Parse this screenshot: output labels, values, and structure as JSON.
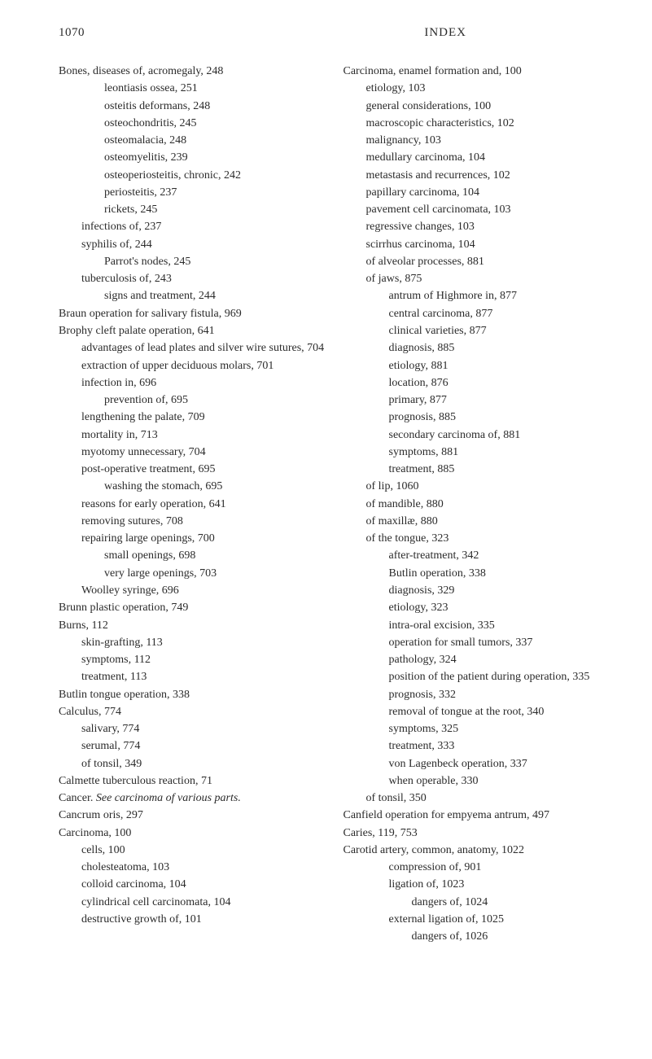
{
  "header": {
    "page_number": "1070",
    "title": "INDEX"
  },
  "left_column": [
    {
      "indent": 0,
      "text": "Bones, diseases of, acromegaly, 248"
    },
    {
      "indent": 2,
      "text": "leontiasis ossea, 251"
    },
    {
      "indent": 2,
      "text": "osteitis deformans, 248"
    },
    {
      "indent": 2,
      "text": "osteochondritis, 245"
    },
    {
      "indent": 2,
      "text": "osteomalacia, 248"
    },
    {
      "indent": 2,
      "text": "osteomyelitis, 239"
    },
    {
      "indent": 2,
      "text": "osteoperiosteitis, chronic, 242"
    },
    {
      "indent": 2,
      "text": "periosteitis, 237"
    },
    {
      "indent": 2,
      "text": "rickets, 245"
    },
    {
      "indent": 1,
      "text": "infections of, 237"
    },
    {
      "indent": 1,
      "text": "syphilis of, 244"
    },
    {
      "indent": 2,
      "text": "Parrot's nodes, 245"
    },
    {
      "indent": 1,
      "text": "tuberculosis of, 243"
    },
    {
      "indent": 2,
      "text": "signs and treatment, 244"
    },
    {
      "indent": 0,
      "text": "Braun operation for salivary fistula, 969"
    },
    {
      "indent": 0,
      "text": "Brophy cleft palate operation, 641"
    },
    {
      "indent": 1,
      "text": "advantages of lead plates and silver wire sutures, 704"
    },
    {
      "indent": 1,
      "text": "extraction of upper deciduous molars, 701"
    },
    {
      "indent": 1,
      "text": "infection in, 696"
    },
    {
      "indent": 2,
      "text": "prevention of, 695"
    },
    {
      "indent": 1,
      "text": "lengthening the palate, 709"
    },
    {
      "indent": 1,
      "text": "mortality in, 713"
    },
    {
      "indent": 1,
      "text": "myotomy unnecessary, 704"
    },
    {
      "indent": 1,
      "text": "post-operative treatment, 695"
    },
    {
      "indent": 2,
      "text": "washing the stomach, 695"
    },
    {
      "indent": 1,
      "text": "reasons for early operation, 641"
    },
    {
      "indent": 1,
      "text": "removing sutures, 708"
    },
    {
      "indent": 1,
      "text": "repairing large openings, 700"
    },
    {
      "indent": 2,
      "text": "small openings, 698"
    },
    {
      "indent": 2,
      "text": "very large openings, 703"
    },
    {
      "indent": 1,
      "text": "Woolley syringe, 696"
    },
    {
      "indent": 0,
      "text": "Brunn plastic operation, 749"
    },
    {
      "indent": 0,
      "text": "Burns, 112"
    },
    {
      "indent": 1,
      "text": "skin-grafting, 113"
    },
    {
      "indent": 1,
      "text": "symptoms, 112"
    },
    {
      "indent": 1,
      "text": "treatment, 113"
    },
    {
      "indent": 0,
      "text": "Butlin tongue operation, 338"
    },
    {
      "indent": 0,
      "text": " "
    },
    {
      "indent": 0,
      "text": "Calculus, 774"
    },
    {
      "indent": 1,
      "text": "salivary, 774"
    },
    {
      "indent": 1,
      "text": "serumal, 774"
    },
    {
      "indent": 1,
      "text": "of tonsil, 349"
    },
    {
      "indent": 0,
      "text": "Calmette tuberculous reaction, 71"
    },
    {
      "indent": 0,
      "prefix": "Cancer.   ",
      "italic_text": "See carcinoma of various parts."
    },
    {
      "indent": 0,
      "text": "Cancrum oris, 297"
    },
    {
      "indent": 0,
      "text": "Carcinoma, 100"
    },
    {
      "indent": 1,
      "text": "cells, 100"
    },
    {
      "indent": 1,
      "text": "cholesteatoma, 103"
    },
    {
      "indent": 1,
      "text": "colloid carcinoma, 104"
    },
    {
      "indent": 1,
      "text": "cylindrical cell carcinomata, 104"
    },
    {
      "indent": 1,
      "text": "destructive growth of, 101"
    }
  ],
  "right_column": [
    {
      "indent": 0,
      "text": "Carcinoma, enamel formation and, 100"
    },
    {
      "indent": 1,
      "text": "etiology, 103"
    },
    {
      "indent": 1,
      "text": "general considerations, 100"
    },
    {
      "indent": 1,
      "text": "macroscopic characteristics, 102"
    },
    {
      "indent": 1,
      "text": "malignancy, 103"
    },
    {
      "indent": 1,
      "text": "medullary carcinoma, 104"
    },
    {
      "indent": 1,
      "text": "metastasis and recurrences, 102"
    },
    {
      "indent": 1,
      "text": "papillary carcinoma, 104"
    },
    {
      "indent": 1,
      "text": "pavement cell carcinomata, 103"
    },
    {
      "indent": 1,
      "text": "regressive changes, 103"
    },
    {
      "indent": 1,
      "text": "scirrhus carcinoma, 104"
    },
    {
      "indent": 1,
      "text": "of alveolar processes, 881"
    },
    {
      "indent": 1,
      "text": "of jaws, 875"
    },
    {
      "indent": 2,
      "text": "antrum of Highmore in, 877"
    },
    {
      "indent": 2,
      "text": "central carcinoma, 877"
    },
    {
      "indent": 2,
      "text": "clinical varieties, 877"
    },
    {
      "indent": 2,
      "text": "diagnosis, 885"
    },
    {
      "indent": 2,
      "text": "etiology, 881"
    },
    {
      "indent": 2,
      "text": "location, 876"
    },
    {
      "indent": 2,
      "text": "primary, 877"
    },
    {
      "indent": 2,
      "text": "prognosis, 885"
    },
    {
      "indent": 2,
      "text": "secondary carcinoma of, 881"
    },
    {
      "indent": 2,
      "text": "symptoms, 881"
    },
    {
      "indent": 2,
      "text": "treatment, 885"
    },
    {
      "indent": 1,
      "text": "of lip, 1060"
    },
    {
      "indent": 1,
      "text": "of mandible, 880"
    },
    {
      "indent": 1,
      "text": "of maxillæ, 880"
    },
    {
      "indent": 1,
      "text": "of the tongue, 323"
    },
    {
      "indent": 2,
      "text": "after-treatment, 342"
    },
    {
      "indent": 2,
      "text": "Butlin operation, 338"
    },
    {
      "indent": 2,
      "text": "diagnosis, 329"
    },
    {
      "indent": 2,
      "text": "etiology, 323"
    },
    {
      "indent": 2,
      "text": "intra-oral excision, 335"
    },
    {
      "indent": 2,
      "text": "operation for small tumors, 337"
    },
    {
      "indent": 2,
      "text": "pathology, 324"
    },
    {
      "indent": 2,
      "text": "position of the patient during operation, 335"
    },
    {
      "indent": 2,
      "text": "prognosis, 332"
    },
    {
      "indent": 2,
      "text": "removal of tongue at the root, 340"
    },
    {
      "indent": 2,
      "text": "symptoms, 325"
    },
    {
      "indent": 2,
      "text": "treatment, 333"
    },
    {
      "indent": 2,
      "text": "von Lagenbeck operation, 337"
    },
    {
      "indent": 2,
      "text": "when operable, 330"
    },
    {
      "indent": 1,
      "text": "of tonsil, 350"
    },
    {
      "indent": 0,
      "text": "Canfield operation for empyema antrum, 497"
    },
    {
      "indent": 0,
      "text": "Caries, 119, 753"
    },
    {
      "indent": 0,
      "text": "Carotid artery, common, anatomy, 1022"
    },
    {
      "indent": 2,
      "text": "compression of, 901"
    },
    {
      "indent": 2,
      "text": "ligation of, 1023"
    },
    {
      "indent": 3,
      "text": "dangers of, 1024"
    },
    {
      "indent": 2,
      "text": "external ligation of, 1025"
    },
    {
      "indent": 3,
      "text": "dangers of, 1026"
    }
  ]
}
